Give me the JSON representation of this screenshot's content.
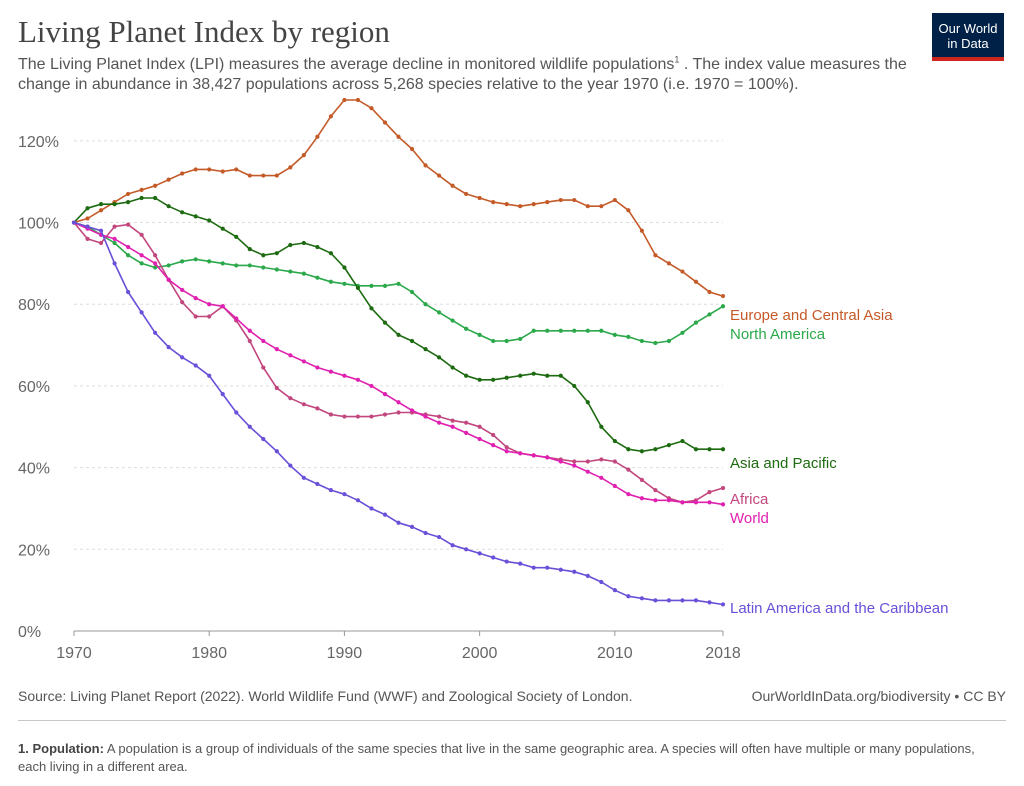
{
  "header": {
    "title": "Living Planet Index by region",
    "subtitle": "The Living Planet Index (LPI) measures the average decline in monitored wildlife populations",
    "subtitle_sup": "1",
    "subtitle_rest": " . The index value measures the change in abundance in 38,427 populations across 5,268 species relative to the year 1970 (i.e. 1970 = 100%).",
    "logo_line1": "Our World",
    "logo_line2": "in Data"
  },
  "footer": {
    "source": "Source: Living Planet Report (2022). World Wildlife Fund (WWF) and Zoological Society of London.",
    "credit": "OurWorldInData.org/biodiversity • CC BY",
    "footnote_label": "1. Population:",
    "footnote_text": " A population is a group of individuals of the same species that live in the same geographic area. A species will often have multiple or many populations, each living in a different area."
  },
  "colors": {
    "grid": "#dddddd",
    "axis_text": "#666666",
    "axis_line": "#999999"
  },
  "chart_data": {
    "type": "line",
    "xlim": [
      1970,
      2018
    ],
    "ylim": [
      0,
      130
    ],
    "x_ticks": [
      1970,
      1980,
      1990,
      2000,
      2010,
      2018
    ],
    "x_tick_labels": [
      "1970",
      "1980",
      "1990",
      "2000",
      "2010",
      "2018"
    ],
    "y_ticks": [
      0,
      20,
      40,
      60,
      80,
      100,
      120
    ],
    "y_tick_labels": [
      "0%",
      "20%",
      "40%",
      "60%",
      "80%",
      "100%",
      "120%"
    ],
    "grid": "horizontal dashed",
    "legend": "line-end labels",
    "x": [
      1970,
      1971,
      1972,
      1973,
      1974,
      1975,
      1976,
      1977,
      1978,
      1979,
      1980,
      1981,
      1982,
      1983,
      1984,
      1985,
      1986,
      1987,
      1988,
      1989,
      1990,
      1991,
      1992,
      1993,
      1994,
      1995,
      1996,
      1997,
      1998,
      1999,
      2000,
      2001,
      2002,
      2003,
      2004,
      2005,
      2006,
      2007,
      2008,
      2009,
      2010,
      2011,
      2012,
      2013,
      2014,
      2015,
      2016,
      2017,
      2018
    ],
    "series": [
      {
        "name": "Europe and Central Asia",
        "color": "#c45a28",
        "values": [
          100,
          101,
          103,
          105,
          107,
          108,
          109,
          110.5,
          112,
          113,
          113,
          112.5,
          113,
          111.5,
          111.5,
          111.5,
          113.5,
          116.5,
          121,
          126,
          130,
          130,
          128,
          124.5,
          121,
          118,
          114,
          111.5,
          109,
          107,
          106,
          105,
          104.5,
          104,
          104.5,
          105,
          105.5,
          105.5,
          104,
          104,
          105.5,
          103,
          98,
          92,
          90,
          88,
          85.5,
          83,
          82
        ]
      },
      {
        "name": "North America",
        "color": "#2aa84a",
        "values": [
          100,
          99,
          97,
          95,
          92,
          90,
          89,
          89.5,
          90.5,
          91,
          90.5,
          90,
          89.5,
          89.5,
          89,
          88.5,
          88,
          87.5,
          86.5,
          85.5,
          85,
          84.5,
          84.5,
          84.5,
          85,
          83,
          80,
          78,
          76,
          74,
          72.5,
          71,
          71,
          71.5,
          73.5,
          73.5,
          73.5,
          73.5,
          73.5,
          73.5,
          72.5,
          72,
          71,
          70.5,
          71,
          73,
          75.5,
          77.5,
          79.5
        ]
      },
      {
        "name": "Asia and Pacific",
        "color": "#1d6b10",
        "values": [
          100,
          103.5,
          104.5,
          104.5,
          105,
          106,
          106,
          104,
          102.5,
          101.5,
          100.5,
          98.5,
          96.5,
          93.5,
          92,
          92.5,
          94.5,
          95,
          94,
          92.5,
          89,
          84,
          79,
          75.5,
          72.5,
          71,
          69,
          67,
          64.5,
          62.5,
          61.5,
          61.5,
          62,
          62.5,
          63,
          62.5,
          62.5,
          60,
          56,
          50,
          46.5,
          44.5,
          44,
          44.5,
          45.5,
          46.5,
          44.5,
          44.5,
          44.5
        ]
      },
      {
        "name": "Africa",
        "color": "#c2477e",
        "values": [
          100,
          96,
          95,
          99,
          99.5,
          97,
          92,
          86,
          80.5,
          77,
          77,
          79.5,
          76,
          71,
          64.5,
          59.5,
          57,
          55.5,
          54.5,
          53,
          52.5,
          52.5,
          52.5,
          53,
          53.5,
          53.5,
          53,
          52.5,
          51.5,
          51,
          50,
          48,
          45,
          43.5,
          43,
          42.5,
          42,
          41.5,
          41.5,
          42,
          41.5,
          39.5,
          37,
          34.5,
          32.5,
          31.5,
          32,
          34,
          35
        ]
      },
      {
        "name": "World",
        "color": "#e020b0",
        "values": [
          100,
          98.5,
          97,
          96,
          94,
          92,
          90,
          86,
          83.5,
          81.5,
          80,
          79.5,
          76.5,
          73.5,
          71,
          69,
          67.5,
          66,
          64.5,
          63.5,
          62.5,
          61.5,
          60,
          58,
          56,
          54,
          52.5,
          51,
          50,
          48.5,
          47,
          45.5,
          44,
          43.5,
          43,
          42.5,
          41.5,
          40.5,
          39,
          37.5,
          35.5,
          33.5,
          32.5,
          32,
          32,
          31.5,
          31.5,
          31.5,
          31
        ]
      },
      {
        "name": "Latin America and the Caribbean",
        "color": "#6a4fd8",
        "values": [
          100,
          99,
          98,
          90,
          83,
          78,
          73,
          69.5,
          67,
          65,
          62.5,
          58,
          53.5,
          50,
          47,
          44,
          40.5,
          37.5,
          36,
          34.5,
          33.5,
          32,
          30,
          28.5,
          26.5,
          25.5,
          24,
          23,
          21,
          20,
          19,
          18,
          17,
          16.5,
          15.5,
          15.5,
          15,
          14.5,
          13.5,
          12,
          10,
          8.5,
          8,
          7.5,
          7.5,
          7.5,
          7.5,
          7,
          6.5
        ]
      }
    ]
  }
}
